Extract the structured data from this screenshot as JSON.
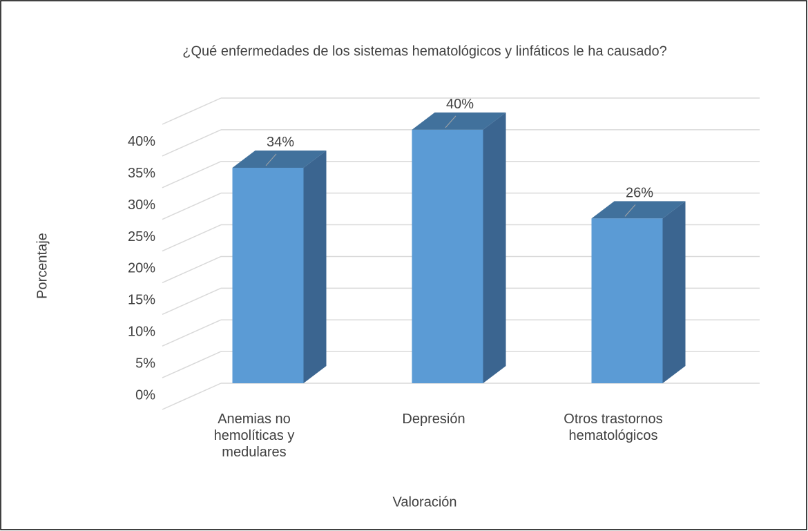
{
  "chart_data": {
    "type": "bar3d",
    "title": "¿Qué enfermedades de los sistemas hematológicos y linfáticos le ha causado?",
    "x_label": "Valoración",
    "y_label": "Porcentaje",
    "categories": [
      "Anemias no hemolíticas y medulares",
      "Depresión",
      "Otros trastornos hematológicos"
    ],
    "values": [
      34,
      40,
      26
    ],
    "value_labels": [
      "34%",
      "40%",
      "26%"
    ],
    "color": "#5b9bd5",
    "ylim": [
      0,
      45
    ],
    "yticks": [
      {
        "value": 0,
        "label": "0%"
      },
      {
        "value": 5,
        "label": "5%"
      },
      {
        "value": 10,
        "label": "10%"
      },
      {
        "value": 15,
        "label": "15%"
      },
      {
        "value": 20,
        "label": "20%"
      },
      {
        "value": 25,
        "label": "25%"
      },
      {
        "value": 30,
        "label": "30%"
      },
      {
        "value": 35,
        "label": "35%"
      },
      {
        "value": 40,
        "label": "40%"
      }
    ],
    "grid": true
  }
}
